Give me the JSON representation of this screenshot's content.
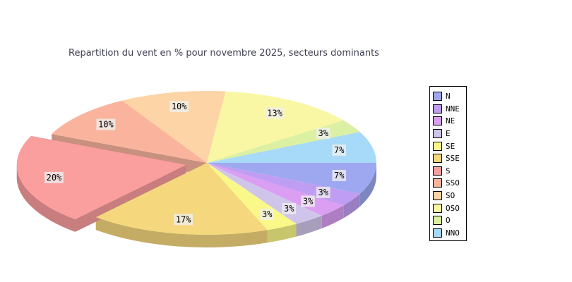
{
  "chart_data": {
    "type": "pie",
    "style": "pie3d-exploded",
    "title": "Repartition du vent en % pour novembre 2025, secteurs dominants",
    "title_color": "#3e3e52",
    "categories": [
      "N",
      "NNE",
      "NE",
      "E",
      "SE",
      "SSE",
      "S",
      "SSO",
      "SO",
      "OSO",
      "O",
      "NNO"
    ],
    "values": [
      7,
      3,
      3,
      3,
      3,
      17,
      20,
      10,
      10,
      13,
      3,
      7
    ],
    "value_labels": [
      "7%",
      "3%",
      "3%",
      "3%",
      "3%",
      "17%",
      "20%",
      "10%",
      "10%",
      "13%",
      "3%",
      "7%"
    ],
    "unit": "%",
    "colors": [
      "#9ea8f0",
      "#bf9df2",
      "#da9ef2",
      "#cfc5ea",
      "#f9f888",
      "#f5d77d",
      "#fa9e9e",
      "#fab49d",
      "#fcd4a5",
      "#faf7a4",
      "#dbf0a3",
      "#a7d9f9"
    ],
    "exploded_sector": "S",
    "start_angle_deg": 0,
    "direction": "clockwise",
    "legend_position": "right",
    "legend_entries": [
      "N",
      "NNE",
      "NE",
      "E",
      "SE",
      "SSE",
      "S",
      "SSO",
      "SO",
      "OSO",
      "O",
      "NNO"
    ],
    "legend_border_color": "#000000",
    "label_text_color": "#000000",
    "label_box_color": "#f0f0f0",
    "background_color": "#ffffff"
  }
}
